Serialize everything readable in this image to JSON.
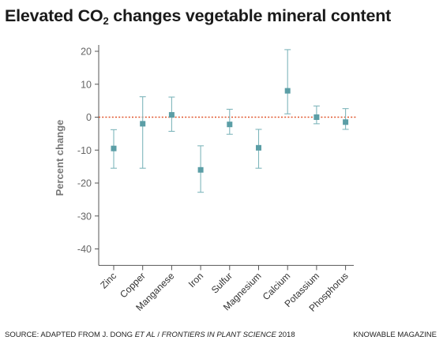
{
  "title": {
    "before": "Elevated CO",
    "subscript": "2",
    "after": " changes vegetable mineral content"
  },
  "footer": {
    "source_prefix": "SOURCE: ADAPTED FROM J. DONG ",
    "source_italic": "ET AL",
    "source_middle": " / ",
    "source_journal": "FRONTIERS IN PLANT SCIENCE",
    "source_year": " 2018",
    "credit": "KNOWABLE MAGAZINE"
  },
  "colors": {
    "marker": "#5b9ea6",
    "errorbar": "#7fb6bc",
    "zeroline": "#e0542a",
    "axis": "#555555",
    "ticklabel": "#666666",
    "ylabel": "#777777"
  },
  "chart_data": {
    "type": "scatter",
    "title": "Elevated CO2 changes vegetable mineral content",
    "ylabel": "Percent change",
    "xlabel": "",
    "ylim": [
      -45,
      23
    ],
    "yticks": [
      20,
      10,
      0,
      -10,
      -20,
      -30,
      -40
    ],
    "reference_line": 0,
    "categories": [
      "Zinc",
      "Copper",
      "Manganese",
      "Iron",
      "Sulfur",
      "Magnesium",
      "Calcium",
      "Potassium",
      "Phosphorus"
    ],
    "values": [
      -9.5,
      -2,
      0.7,
      -16,
      -2.2,
      -9.3,
      8,
      0,
      -1.5
    ],
    "error_low": [
      -15.5,
      -15.5,
      -4.3,
      -22.8,
      -5.2,
      -15.5,
      1,
      -2,
      -3.7
    ],
    "error_high": [
      -3.8,
      6.2,
      6.1,
      -8.7,
      2.4,
      -3.7,
      20.5,
      3.4,
      2.6
    ]
  }
}
